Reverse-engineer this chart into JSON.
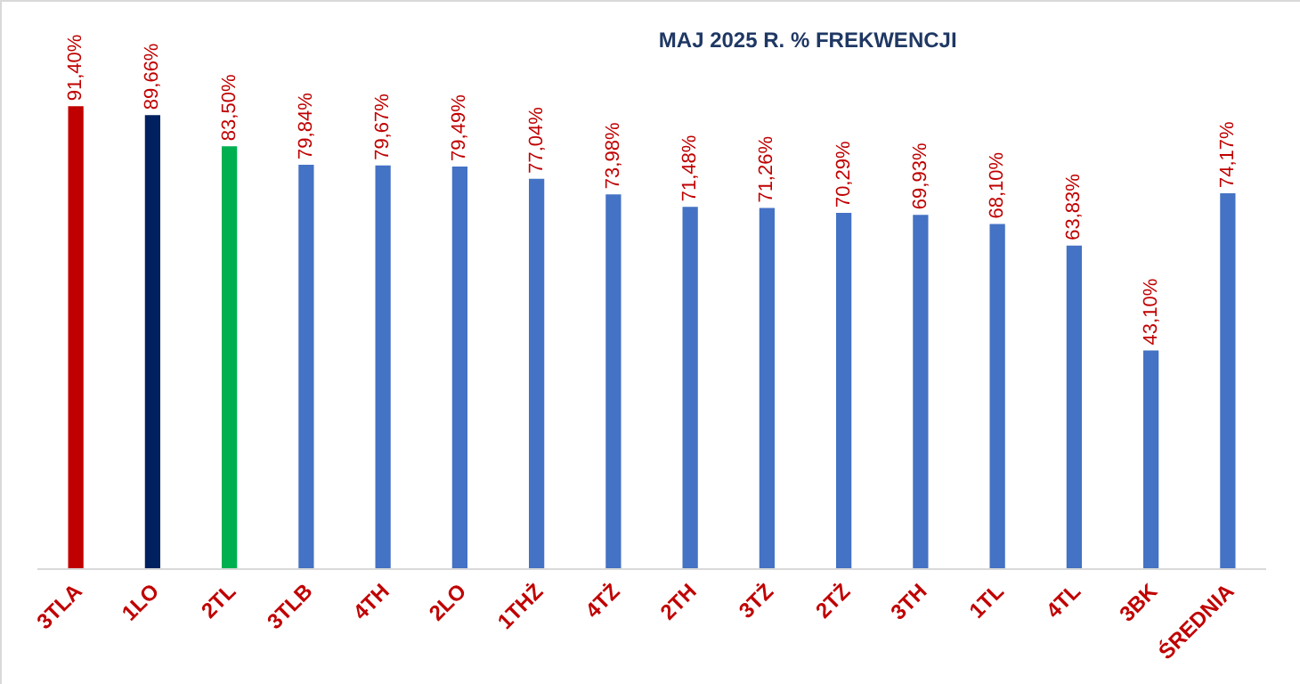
{
  "chart_data": {
    "type": "bar",
    "title": "MAJ 2025 R. % FREKWENCJI",
    "categories": [
      "3TLA",
      "1LO",
      "2TL",
      "3TLB",
      "4TH",
      "2LO",
      "1THŻ",
      "4TŻ",
      "2TH",
      "3TŻ",
      "2TŻ",
      "3TH",
      "1TL",
      "4TL",
      "3BK",
      "ŚREDNIA"
    ],
    "values": [
      91.4,
      89.66,
      83.5,
      79.84,
      79.67,
      79.49,
      77.04,
      73.98,
      71.48,
      71.26,
      70.29,
      69.93,
      68.1,
      63.83,
      43.1,
      74.17
    ],
    "value_labels": [
      "91,40%",
      "89,66%",
      "83,50%",
      "79,84%",
      "79,67%",
      "79,49%",
      "77,04%",
      "73,98%",
      "71,48%",
      "71,26%",
      "70,29%",
      "69,93%",
      "68,10%",
      "63,83%",
      "43,10%",
      "74,17%"
    ],
    "colors": [
      "#c00000",
      "#002060",
      "#00b050",
      "#4472c4",
      "#4472c4",
      "#4472c4",
      "#4472c4",
      "#4472c4",
      "#4472c4",
      "#4472c4",
      "#4472c4",
      "#4472c4",
      "#4472c4",
      "#4472c4",
      "#4472c4",
      "#4472c4"
    ],
    "grid": false,
    "legend": false
  }
}
